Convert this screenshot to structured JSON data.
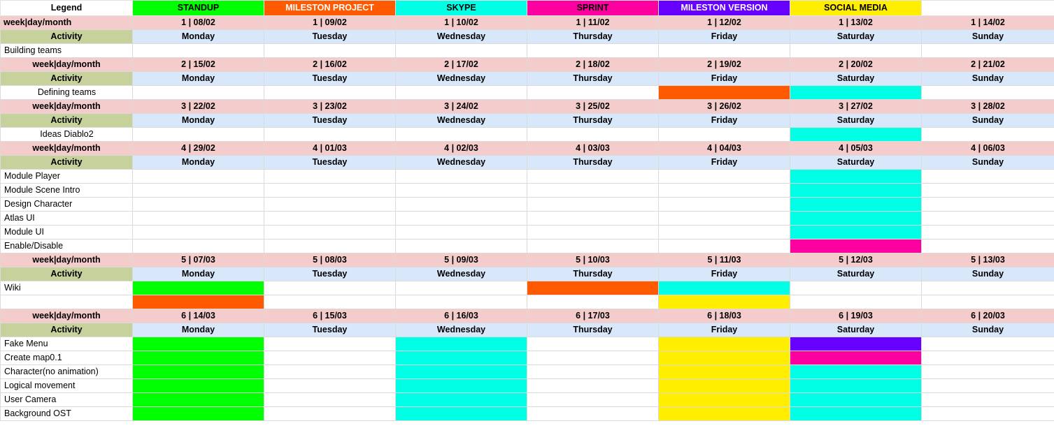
{
  "legend": {
    "title": "Legend",
    "items": [
      {
        "label": "STANDUP",
        "color": "#00ff00",
        "text_color": "#000000"
      },
      {
        "label": "MILESTON PROJECT",
        "color": "#ff5a00",
        "text_color": "#ffffff"
      },
      {
        "label": "SKYPE",
        "color": "#00ffe4",
        "text_color": "#000000"
      },
      {
        "label": "SPRINT",
        "color": "#ff00a0",
        "text_color": "#000000"
      },
      {
        "label": "MILESTON VERSION",
        "color": "#6600ff",
        "text_color": "#ffffff"
      },
      {
        "label": "SOCIAL MEDIA",
        "color": "#ffee00",
        "text_color": "#000000"
      }
    ]
  },
  "colors": {
    "standup": "#00ff00",
    "milestone_project": "#ff5a00",
    "skype": "#00ffe4",
    "sprint": "#ff00a0",
    "milestone_version": "#6600ff",
    "social_media": "#ffee00",
    "week_row": "#f4cccc",
    "day_row": "#d9e7fb",
    "activity_label": "#c6d19c"
  },
  "weeks": [
    {
      "week_label": "week|day/month",
      "activity_label": "Activity",
      "dates": [
        "1 | 08/02",
        "1 | 09/02",
        "1 | 10/02",
        "1 | 11/02",
        "1 | 12/02",
        "1 | 13/02",
        "1 | 14/02"
      ],
      "days": [
        "Monday",
        "Tuesday",
        "Wednesday",
        "Thursday",
        "Friday",
        "Saturday",
        "Sunday"
      ],
      "tasks": [
        {
          "label": "Building teams",
          "fills": [
            null,
            null,
            null,
            null,
            null,
            null,
            null
          ]
        }
      ]
    },
    {
      "week_label": "week|day/month",
      "activity_label": "Activity",
      "dates": [
        "2 | 15/02",
        "2 | 16/02",
        "2 | 17/02",
        "2 | 18/02",
        "2 | 19/02",
        "2 | 20/02",
        "2 | 21/02"
      ],
      "days": [
        "Monday",
        "Tuesday",
        "Wednesday",
        "Thursday",
        "Friday",
        "Saturday",
        "Sunday"
      ],
      "tasks": [
        {
          "label": "Defining teams",
          "fills": [
            null,
            null,
            null,
            null,
            "milestone_project",
            "skype",
            null
          ]
        }
      ]
    },
    {
      "week_label": "week|day/month",
      "activity_label": "Activity",
      "dates": [
        "3 | 22/02",
        "3 | 23/02",
        "3 | 24/02",
        "3 | 25/02",
        "3 | 26/02",
        "3 | 27/02",
        "3 | 28/02"
      ],
      "days": [
        "Monday",
        "Tuesday",
        "Wednesday",
        "Thursday",
        "Friday",
        "Saturday",
        "Sunday"
      ],
      "tasks": [
        {
          "label": "Ideas Diablo2",
          "fills": [
            null,
            null,
            null,
            null,
            null,
            "skype",
            null
          ]
        }
      ]
    },
    {
      "week_label": "week|day/month",
      "activity_label": "Activity",
      "dates": [
        "4 | 29/02",
        "4 | 01/03",
        "4 | 02/03",
        "4 | 03/03",
        "4 | 04/03",
        "4 | 05/03",
        "4 | 06/03"
      ],
      "days": [
        "Monday",
        "Tuesday",
        "Wednesday",
        "Thursday",
        "Friday",
        "Saturday",
        "Sunday"
      ],
      "tasks": [
        {
          "label": "Module Player",
          "fills": [
            null,
            null,
            null,
            null,
            null,
            "skype",
            null
          ]
        },
        {
          "label": "Module Scene Intro",
          "fills": [
            null,
            null,
            null,
            null,
            null,
            "skype",
            null
          ]
        },
        {
          "label": "Design Character",
          "fills": [
            null,
            null,
            null,
            null,
            null,
            "skype",
            null
          ]
        },
        {
          "label": "Atlas UI",
          "fills": [
            null,
            null,
            null,
            null,
            null,
            "skype",
            null
          ]
        },
        {
          "label": "Module UI",
          "fills": [
            null,
            null,
            null,
            null,
            null,
            "skype",
            null
          ]
        },
        {
          "label": "Enable/Disable",
          "fills": [
            null,
            null,
            null,
            null,
            null,
            "sprint",
            null
          ]
        }
      ]
    },
    {
      "week_label": "week|day/month",
      "activity_label": "Activity",
      "dates": [
        "5 | 07/03",
        "5 | 08/03",
        "5 | 09/03",
        "5 | 10/03",
        "5 | 11/03",
        "5 | 12/03",
        "5 | 13/03"
      ],
      "days": [
        "Monday",
        "Tuesday",
        "Wednesday",
        "Thursday",
        "Friday",
        "Saturday",
        "Sunday"
      ],
      "tasks": [
        {
          "label": "Wiki",
          "fills": [
            "standup",
            null,
            null,
            "milestone_project",
            "skype",
            null,
            null
          ]
        },
        {
          "label": "",
          "fills": [
            "milestone_project",
            null,
            null,
            null,
            "social_media",
            null,
            null
          ]
        }
      ]
    },
    {
      "week_label": "week|day/month",
      "activity_label": "Activity",
      "dates": [
        "6 | 14/03",
        "6 | 15/03",
        "6 | 16/03",
        "6 | 17/03",
        "6 | 18/03",
        "6 | 19/03",
        "6 | 20/03"
      ],
      "days": [
        "Monday",
        "Tuesday",
        "Wednesday",
        "Thursday",
        "Friday",
        "Saturday",
        "Sunday"
      ],
      "tasks": [
        {
          "label": "Fake Menu",
          "fills": [
            "standup",
            null,
            "skype",
            null,
            "social_media",
            "milestone_version",
            null
          ]
        },
        {
          "label": "Create map0.1",
          "fills": [
            "standup",
            null,
            "skype",
            null,
            "social_media",
            "sprint",
            null
          ]
        },
        {
          "label": "Character(no animation)",
          "fills": [
            "standup",
            null,
            "skype",
            null,
            "social_media",
            "skype",
            null
          ]
        },
        {
          "label": "Logical movement",
          "fills": [
            "standup",
            null,
            "skype",
            null,
            "social_media",
            "skype",
            null
          ]
        },
        {
          "label": "User Camera",
          "fills": [
            "standup",
            null,
            "skype",
            null,
            "social_media",
            "skype",
            null
          ]
        },
        {
          "label": "Background OST",
          "fills": [
            "standup",
            null,
            "skype",
            null,
            "social_media",
            "skype",
            null
          ]
        }
      ]
    }
  ]
}
